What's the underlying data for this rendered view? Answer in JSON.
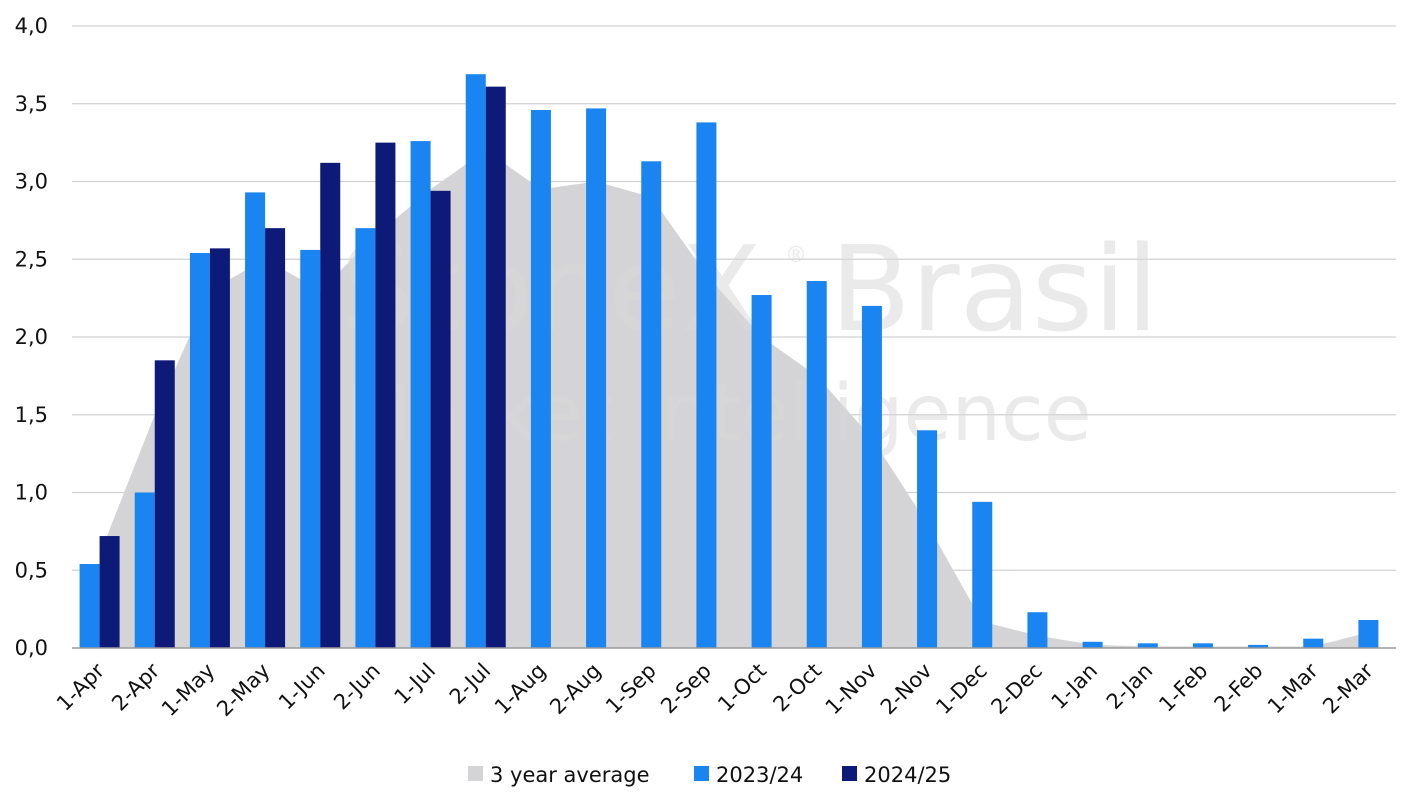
{
  "chart_data": {
    "type": "bar",
    "categories": [
      "1-Apr",
      "2-Apr",
      "1-May",
      "2-May",
      "1-Jun",
      "2-Jun",
      "1-Jul",
      "2-Jul",
      "1-Aug",
      "2-Aug",
      "1-Sep",
      "2-Sep",
      "1-Oct",
      "2-Oct",
      "1-Nov",
      "2-Nov",
      "1-Dec",
      "2-Dec",
      "1-Jan",
      "2-Jan",
      "1-Feb",
      "2-Feb",
      "1-Mar",
      "2-Mar"
    ],
    "ylim": [
      0,
      4
    ],
    "yticks": [
      "0,0",
      "0,5",
      "1,0",
      "1,5",
      "2,0",
      "2,5",
      "3,0",
      "3,5",
      "4,0"
    ],
    "grid": true,
    "legend_position": "bottom",
    "series": [
      {
        "name": "3 year average",
        "type": "area",
        "color": "#d4d4d6",
        "values": [
          0.6,
          1.5,
          2.3,
          2.5,
          2.3,
          2.65,
          2.95,
          3.2,
          2.95,
          3.0,
          2.9,
          2.4,
          2.0,
          1.75,
          1.35,
          0.8,
          0.17,
          0.08,
          0.02,
          0.01,
          0.01,
          0.01,
          0.01,
          0.1
        ]
      },
      {
        "name": "2023/24",
        "type": "bar",
        "color": "#1a84f0",
        "values": [
          0.54,
          1.0,
          2.54,
          2.93,
          2.56,
          2.7,
          3.26,
          3.69,
          3.46,
          3.47,
          3.13,
          3.38,
          2.27,
          2.36,
          2.2,
          1.4,
          0.94,
          0.23,
          0.04,
          0.03,
          0.03,
          0.02,
          0.06,
          0.18
        ]
      },
      {
        "name": "2024/25",
        "type": "bar",
        "color": "#0e1a78",
        "values": [
          0.72,
          1.85,
          2.57,
          2.7,
          3.12,
          3.25,
          2.94,
          3.61,
          null,
          null,
          null,
          null,
          null,
          null,
          null,
          null,
          null,
          null,
          null,
          null,
          null,
          null,
          null,
          null
        ]
      }
    ]
  },
  "watermark": {
    "brand": "StoneX",
    "region": "Brasil",
    "tagline": "Market Intelligence",
    "registered": "®"
  }
}
